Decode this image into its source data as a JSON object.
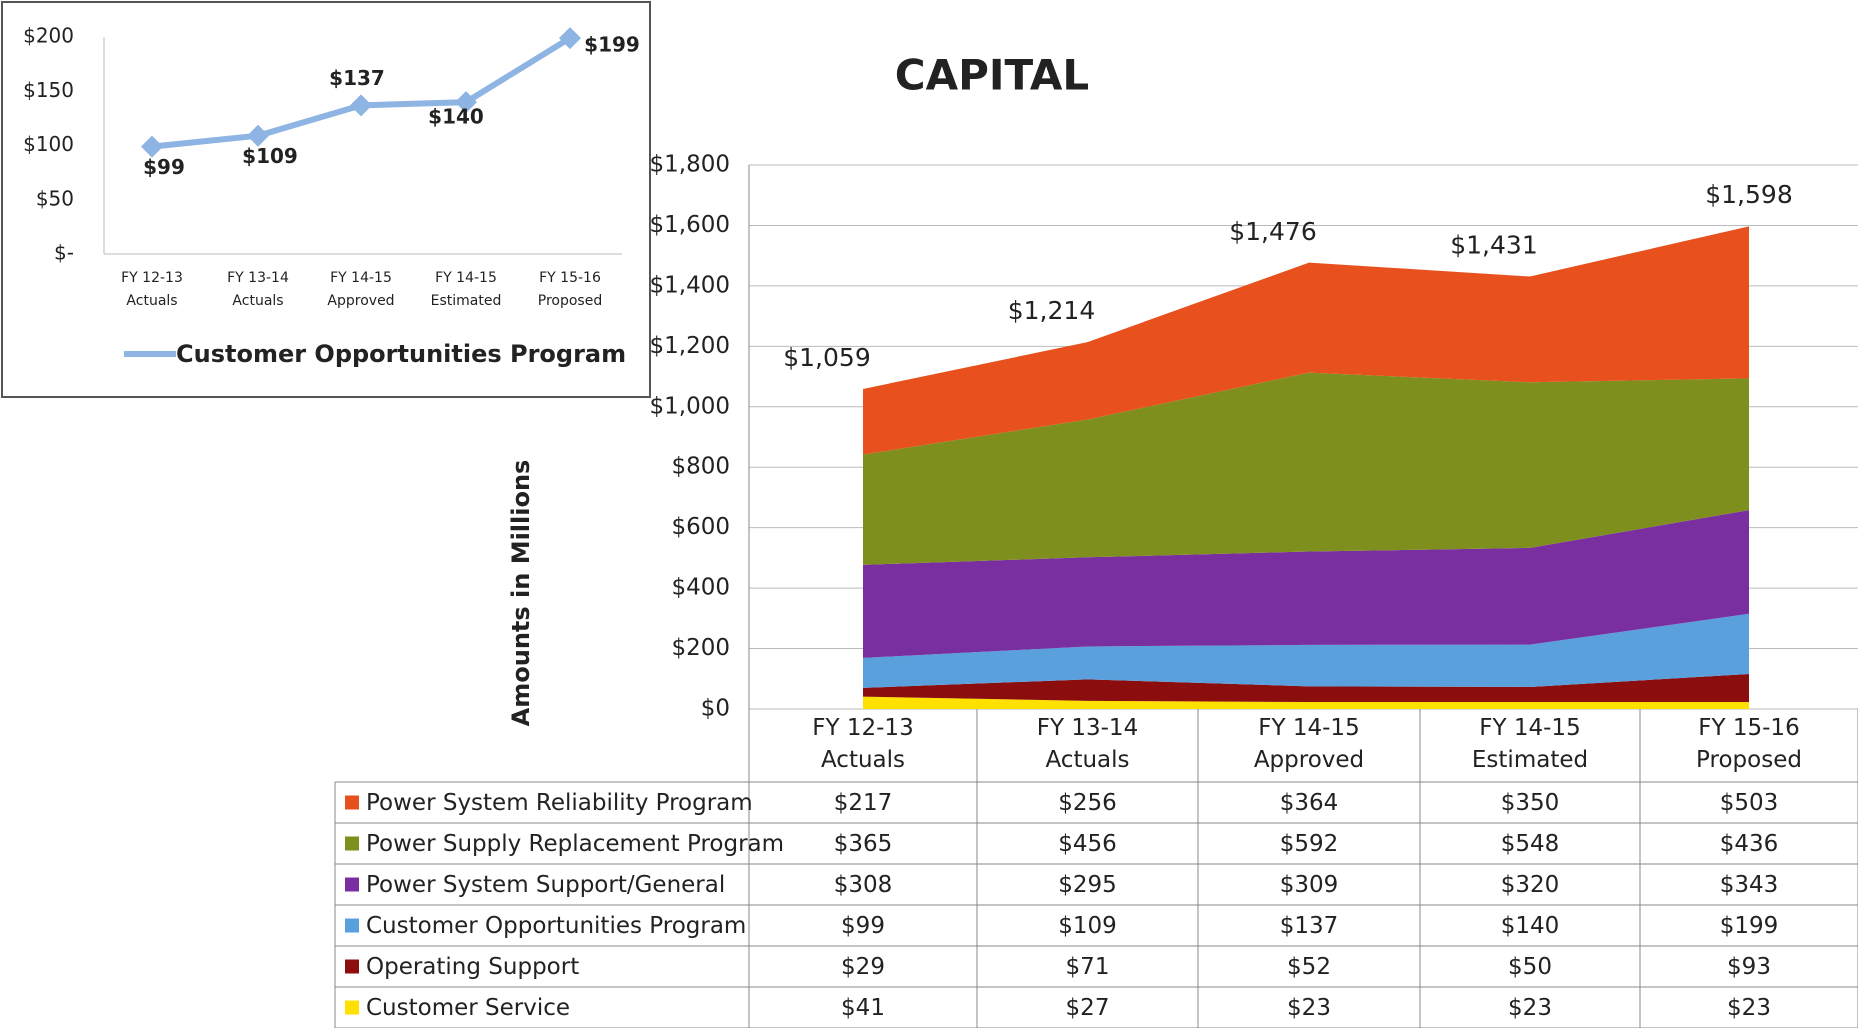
{
  "chart_data": [
    {
      "type": "line",
      "categories": [
        "FY 12-13 Actuals",
        "FY 13-14 Actuals",
        "FY 14-15 Approved",
        "FY 14-15 Estimated",
        "FY 15-16 Proposed"
      ],
      "series": [
        {
          "name": "Customer Opportunities Program",
          "color": "#8db4e2",
          "values": [
            99,
            109,
            137,
            140,
            199
          ],
          "value_labels": [
            "$99",
            "$109",
            "$137",
            "$140",
            "$199"
          ]
        }
      ],
      "ylim": [
        0,
        200
      ],
      "yticks": [
        {
          "value": 0,
          "label": "$-"
        },
        {
          "value": 50,
          "label": "$50"
        },
        {
          "value": 100,
          "label": "$100"
        },
        {
          "value": 150,
          "label": "$150"
        },
        {
          "value": 200,
          "label": "$200"
        }
      ],
      "legend": "bottom"
    },
    {
      "type": "area",
      "stacked": true,
      "title": "CAPITAL",
      "y_label": "Amounts in Millions",
      "categories": [
        "FY 12-13 Actuals",
        "FY 13-14 Actuals",
        "FY 14-15 Approved",
        "FY 14-15 Estimated",
        "FY 15-16 Proposed"
      ],
      "series": [
        {
          "name": "Power System Reliability Program",
          "color": "#e8501e",
          "values": [
            217,
            256,
            364,
            350,
            503
          ],
          "value_labels": [
            "$217",
            "$256",
            "$364",
            "$350",
            "$503"
          ]
        },
        {
          "name": "Power Supply Replacement Program",
          "color": "#7f8f1e",
          "values": [
            365,
            456,
            592,
            548,
            436
          ],
          "value_labels": [
            "$365",
            "$456",
            "$592",
            "$548",
            "$436"
          ]
        },
        {
          "name": "Power System Support/General",
          "color": "#7a2fa0",
          "values": [
            308,
            295,
            309,
            320,
            343
          ],
          "value_labels": [
            "$308",
            "$295",
            "$309",
            "$320",
            "$343"
          ]
        },
        {
          "name": "Customer Opportunities Program",
          "color": "#5aa0dc",
          "values": [
            99,
            109,
            137,
            140,
            199
          ],
          "value_labels": [
            "$99",
            "$109",
            "$137",
            "$140",
            "$199"
          ]
        },
        {
          "name": "Operating Support",
          "color": "#8b0d0d",
          "values": [
            29,
            71,
            52,
            50,
            93
          ],
          "value_labels": [
            "$29",
            "$71",
            "$52",
            "$50",
            "$93"
          ]
        },
        {
          "name": "Customer Service",
          "color": "#ffe000",
          "values": [
            41,
            27,
            23,
            23,
            23
          ],
          "value_labels": [
            "$41",
            "$27",
            "$23",
            "$23",
            "$23"
          ]
        }
      ],
      "totals": [
        1059,
        1214,
        1476,
        1431,
        1598
      ],
      "total_labels": [
        "$1,059",
        "$1,214",
        "$1,476",
        "$1,431",
        "$1,598"
      ],
      "ylim": [
        0,
        1800
      ],
      "yticks": [
        {
          "value": 0,
          "label": "$0"
        },
        {
          "value": 200,
          "label": "$200"
        },
        {
          "value": 400,
          "label": "$400"
        },
        {
          "value": 600,
          "label": "$600"
        },
        {
          "value": 800,
          "label": "$800"
        },
        {
          "value": 1000,
          "label": "$1,000"
        },
        {
          "value": 1200,
          "label": "$1,200"
        },
        {
          "value": 1400,
          "label": "$1,400"
        },
        {
          "value": 1600,
          "label": "$1,600"
        },
        {
          "value": 1800,
          "label": "$1,800"
        }
      ],
      "grid": true
    }
  ]
}
